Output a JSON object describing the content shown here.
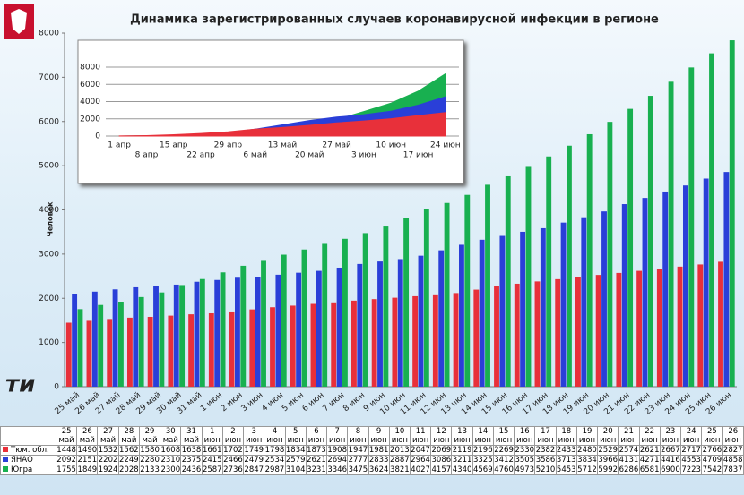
{
  "header": {
    "title": "Динамика зарегистрированных случаев коронавирусной инфекции в регионе"
  },
  "chart_data": [
    {
      "type": "bar",
      "y_label": "Человек",
      "categories": [
        "25 май",
        "26 май",
        "27 май",
        "28 май",
        "29 май",
        "30 май",
        "31 май",
        "1 июн",
        "2 июн",
        "3 июн",
        "4 июн",
        "5 июн",
        "6 июн",
        "7 июн",
        "8 июн",
        "9 июн",
        "10 июн",
        "11 июн",
        "12 июн",
        "13 июн",
        "14 июн",
        "15 июн",
        "16 июн",
        "17 июн",
        "18 июн",
        "19 июн",
        "20 июн",
        "21 июн",
        "22 июн",
        "23 июн",
        "24 июн",
        "25 июн",
        "26 июн"
      ],
      "series": [
        {
          "name": "Тюм. обл.",
          "color": "#e8303a",
          "values": [
            1448,
            1490,
            1532,
            1562,
            1580,
            1608,
            1638,
            1661,
            1702,
            1749,
            1798,
            1834,
            1873,
            1908,
            1947,
            1981,
            2013,
            2047,
            2069,
            2119,
            2196,
            2269,
            2330,
            2382,
            2433,
            2480,
            2529,
            2574,
            2621,
            2667,
            2717,
            2766,
            2827
          ]
        },
        {
          "name": "ЯНАО",
          "color": "#2a3fd8",
          "values": [
            2092,
            2151,
            2202,
            2249,
            2280,
            2310,
            2375,
            2415,
            2466,
            2479,
            2534,
            2579,
            2621,
            2694,
            2777,
            2833,
            2887,
            2964,
            3086,
            3211,
            3325,
            3412,
            3505,
            3586,
            3713,
            3834,
            3966,
            4131,
            4271,
            4416,
            4553,
            4709,
            4858
          ]
        },
        {
          "name": "Югра",
          "color": "#18b050",
          "values": [
            1755,
            1849,
            1924,
            2028,
            2133,
            2300,
            2436,
            2587,
            2736,
            2847,
            2987,
            3104,
            3231,
            3346,
            3475,
            3624,
            3821,
            4027,
            4157,
            4340,
            4569,
            4760,
            4973,
            5210,
            5453,
            5712,
            5992,
            6286,
            6581,
            6900,
            7223,
            7542,
            7837
          ]
        }
      ],
      "ylim": [
        0,
        8000
      ],
      "yticks": [
        0,
        1000,
        2000,
        3000,
        4000,
        5000,
        6000,
        7000,
        8000
      ],
      "grid": false
    },
    {
      "type": "area",
      "categories": [
        "1 апр",
        "8 апр",
        "15 апр",
        "22 апр",
        "29 апр",
        "6 май",
        "13 май",
        "20 май",
        "27 май",
        "3 июн",
        "10 июн",
        "17 июн",
        "24 июн"
      ],
      "series": [
        {
          "name": "Югра",
          "color": "#18b050",
          "values": [
            5,
            30,
            100,
            200,
            400,
            700,
            1000,
            1400,
            1924,
            2847,
            3821,
            5210,
            7223
          ]
        },
        {
          "name": "ЯНАО",
          "color": "#2a3fd8",
          "values": [
            0,
            10,
            60,
            200,
            400,
            800,
            1300,
            1800,
            2202,
            2479,
            2887,
            3586,
            4553
          ]
        },
        {
          "name": "Тюм. обл.",
          "color": "#e8303a",
          "values": [
            10,
            50,
            150,
            300,
            500,
            800,
            1000,
            1250,
            1532,
            1749,
            2013,
            2382,
            2717
          ]
        }
      ],
      "ylim": [
        0,
        8000
      ],
      "yticks": [
        0,
        2000,
        4000,
        6000,
        8000
      ],
      "grid": true
    }
  ]
}
